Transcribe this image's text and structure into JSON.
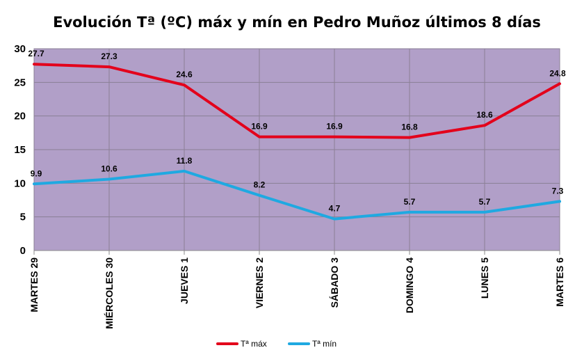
{
  "chart_data": {
    "type": "line",
    "title": "Evolución Tª (ºC) máx y mín en Pedro Muñoz últimos 8 días",
    "categories": [
      "MARTES 29",
      "MIÉRCOLES 30",
      "JUEVES 1",
      "VIERNES 2",
      "SÁBADO 3",
      "DOMINGO 4",
      "LUNES 5",
      "MARTES 6"
    ],
    "series": [
      {
        "name": "Tª máx",
        "values": [
          27.7,
          27.3,
          24.6,
          16.9,
          16.9,
          16.8,
          18.6,
          24.8
        ],
        "color": "#e3001b"
      },
      {
        "name": "Tª mín",
        "values": [
          9.9,
          10.6,
          11.8,
          8.2,
          4.7,
          5.7,
          5.7,
          7.3
        ],
        "color": "#1fa9e1"
      }
    ],
    "yticks": [
      0,
      5,
      10,
      15,
      20,
      25,
      30
    ],
    "ylim": [
      0,
      30
    ],
    "plot_background": "#b19fc8",
    "gridline_color": "#8a7f95",
    "grid": true,
    "legend_position": "bottom"
  }
}
